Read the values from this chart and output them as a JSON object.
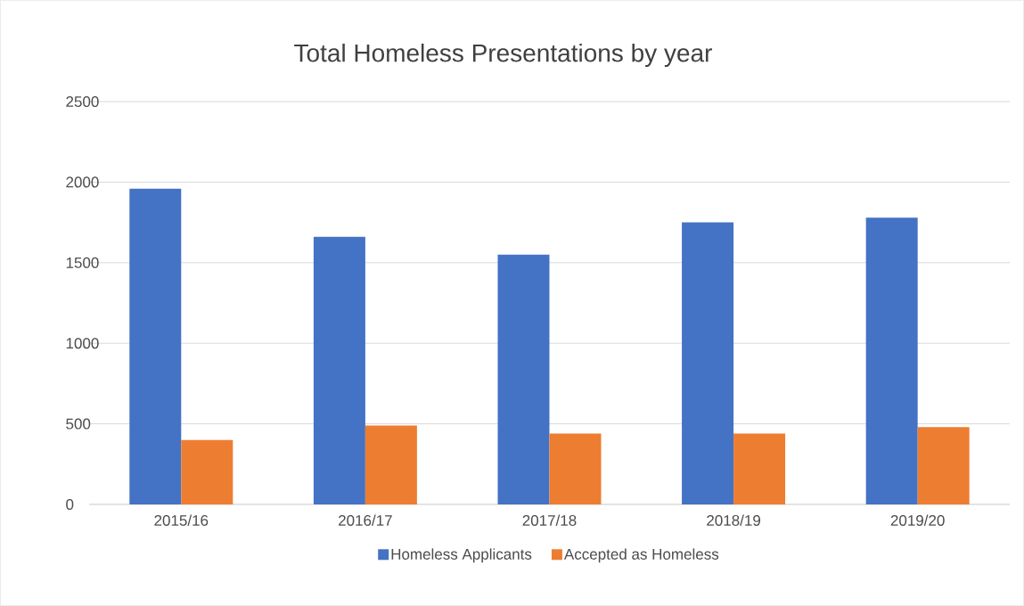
{
  "chart_data": {
    "type": "bar",
    "title": "Total Homeless Presentations by year",
    "categories": [
      "2015/16",
      "2016/17",
      "2017/18",
      "2018/19",
      "2019/20"
    ],
    "series": [
      {
        "name": "Homeless Applicants",
        "color": "#4472c4",
        "values": [
          1960,
          1660,
          1550,
          1750,
          1780
        ]
      },
      {
        "name": "Accepted as Homeless",
        "color": "#ed7d31",
        "values": [
          400,
          490,
          440,
          440,
          480
        ]
      }
    ],
    "ylim": [
      0,
      2500
    ],
    "yticks": [
      0,
      500,
      1000,
      1500,
      2000,
      2500
    ],
    "grid": "y",
    "legend": "bottom"
  }
}
